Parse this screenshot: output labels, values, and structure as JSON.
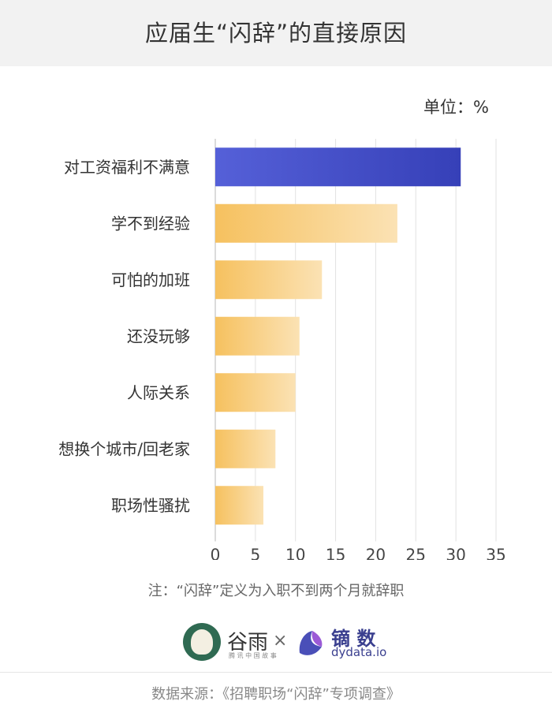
{
  "unit_label": "单位：%",
  "note": "注：“闪辞”定义为入职不到两个月就辞职",
  "logos": {
    "guyu_name": "谷雨",
    "guyu_sub": "腾 讯 中 国 故 事",
    "times": "×",
    "dydata_name": "镝 数",
    "dydata_domain": "dydata.io"
  },
  "source": "数据来源：《招聘职场“闪辞”专项调查》",
  "colors": {
    "highlight_bar": "#3f48c7",
    "normal_bar_start": "#f6c46a",
    "normal_bar_end": "#fbe2b0",
    "grid": "#e2e2e2"
  },
  "chart_data": {
    "type": "bar",
    "orientation": "horizontal",
    "title": "应届生“闪辞”的直接原因",
    "categories": [
      "对工资福利不满意",
      "学不到经验",
      "可怕的加班",
      "还没玩够",
      "人际关系",
      "想换个城市/回老家",
      "职场性骚扰"
    ],
    "values": [
      30.6,
      22.7,
      13.3,
      10.5,
      10,
      7.5,
      6
    ],
    "xlim": [
      0,
      35
    ],
    "xticks": [
      0,
      5,
      10,
      15,
      20,
      25,
      30,
      35
    ],
    "grid": true,
    "highlight_index": 0
  }
}
